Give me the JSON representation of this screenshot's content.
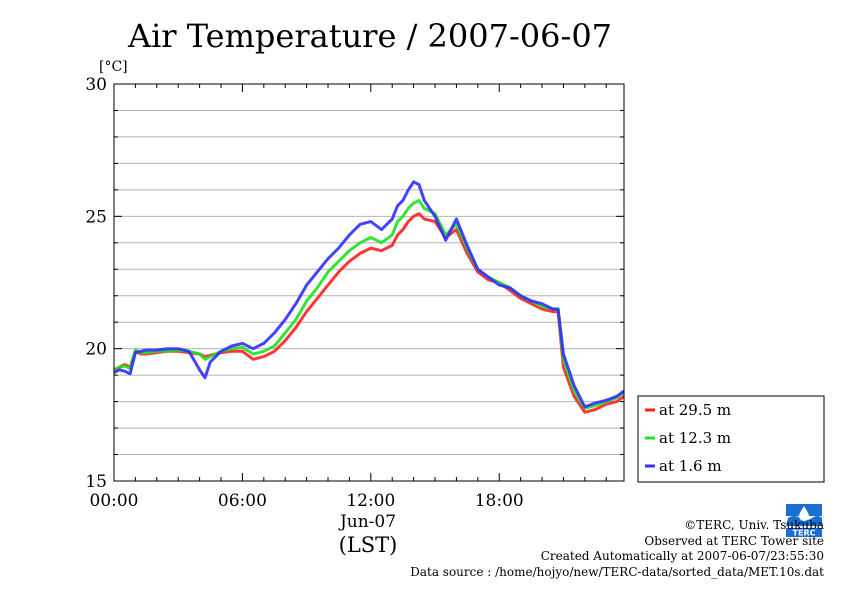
{
  "chart_data": {
    "type": "line",
    "title": "Air Temperature / 2007-06-07",
    "ylabel": "[°C]",
    "xlabel": "(LST)",
    "x_date_label": "Jun-07",
    "ylim": [
      15,
      30
    ],
    "yticks": [
      "15",
      "20",
      "25",
      "30"
    ],
    "xlim": [
      0,
      23.83
    ],
    "xticks": [
      "00:00",
      "06:00",
      "12:00",
      "18:00"
    ],
    "xtick_hours": [
      0,
      6,
      12,
      18
    ],
    "grid": true,
    "legend_position": "right",
    "x": [
      0,
      0.25,
      0.5,
      0.75,
      1,
      1.25,
      1.5,
      2,
      2.5,
      3,
      3.5,
      4,
      4.25,
      4.5,
      5,
      5.5,
      6,
      6.5,
      7,
      7.5,
      8,
      8.5,
      9,
      9.5,
      10,
      10.5,
      11,
      11.5,
      12,
      12.5,
      13,
      13.25,
      13.5,
      13.75,
      14,
      14.25,
      14.5,
      15,
      15.5,
      16,
      16.5,
      17,
      17.5,
      18,
      18.5,
      19,
      19.5,
      20,
      20.5,
      20.75,
      21,
      21.5,
      22,
      22.5,
      23,
      23.5,
      23.83
    ],
    "series": [
      {
        "name": "at 29.5 m",
        "color": "#ff2020",
        "values": [
          19.2,
          19.3,
          19.4,
          19.3,
          19.9,
          19.8,
          19.8,
          19.85,
          19.9,
          19.9,
          19.85,
          19.8,
          19.7,
          19.75,
          19.85,
          19.9,
          19.9,
          19.6,
          19.7,
          19.9,
          20.3,
          20.8,
          21.4,
          21.9,
          22.4,
          22.9,
          23.3,
          23.6,
          23.8,
          23.7,
          23.9,
          24.3,
          24.5,
          24.8,
          25.0,
          25.1,
          24.9,
          24.8,
          24.2,
          24.5,
          23.6,
          22.9,
          22.6,
          22.5,
          22.2,
          21.9,
          21.7,
          21.5,
          21.4,
          21.4,
          19.3,
          18.2,
          17.6,
          17.7,
          17.9,
          18.0,
          18.2
        ]
      },
      {
        "name": "at 12.3 m",
        "color": "#20e020",
        "values": [
          19.2,
          19.3,
          19.35,
          19.25,
          19.95,
          19.85,
          19.85,
          19.9,
          19.9,
          19.95,
          19.9,
          19.8,
          19.6,
          19.7,
          19.9,
          20.0,
          20.05,
          19.8,
          19.9,
          20.1,
          20.6,
          21.1,
          21.8,
          22.3,
          22.9,
          23.3,
          23.7,
          24.0,
          24.2,
          24.0,
          24.3,
          24.8,
          25.0,
          25.3,
          25.5,
          25.6,
          25.3,
          25.1,
          24.3,
          24.7,
          23.8,
          23.0,
          22.7,
          22.5,
          22.3,
          22.0,
          21.8,
          21.6,
          21.5,
          21.5,
          19.6,
          18.4,
          17.75,
          17.85,
          18.0,
          18.15,
          18.35
        ]
      },
      {
        "name": "at 1.6 m",
        "color": "#3030ff",
        "values": [
          19.1,
          19.2,
          19.15,
          19.05,
          19.85,
          19.9,
          19.95,
          19.95,
          20.0,
          20.0,
          19.9,
          19.2,
          18.9,
          19.5,
          19.9,
          20.1,
          20.2,
          20.0,
          20.2,
          20.6,
          21.1,
          21.7,
          22.4,
          22.9,
          23.4,
          23.8,
          24.3,
          24.7,
          24.8,
          24.5,
          24.9,
          25.4,
          25.6,
          26.0,
          26.3,
          26.2,
          25.6,
          25.0,
          24.1,
          24.9,
          23.9,
          23.0,
          22.7,
          22.4,
          22.3,
          22.0,
          21.8,
          21.7,
          21.5,
          21.5,
          19.8,
          18.6,
          17.8,
          17.95,
          18.05,
          18.2,
          18.4
        ]
      }
    ]
  },
  "footer": {
    "copyright": "©TERC, Univ. Tsukuba",
    "observed": "Observed at TERC Tower site",
    "created": "Created Automatically at 2007-06-07/23:55:30",
    "source": "Data source : /home/hojyo/new/TERC-data/sorted_data/MET.10s.dat"
  },
  "logo": {
    "text": "TERC",
    "color": "#1a6fd0"
  }
}
